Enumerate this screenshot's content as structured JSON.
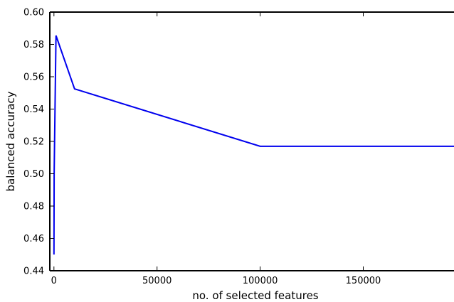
{
  "chart_data": {
    "type": "line",
    "title": "",
    "xlabel": "no. of selected features",
    "ylabel": "balanced accuracy",
    "xlim": [
      -2000,
      194000
    ],
    "ylim": [
      0.44,
      0.6
    ],
    "grid": false,
    "legend": "none",
    "x_ticks": [
      0,
      50000,
      100000,
      150000
    ],
    "x_tick_labels": [
      "0",
      "50000",
      "100000",
      "150000"
    ],
    "y_ticks": [
      0.44,
      0.46,
      0.48,
      0.5,
      0.52,
      0.54,
      0.56,
      0.58,
      0.6
    ],
    "y_tick_labels": [
      "0.44",
      "0.46",
      "0.48",
      "0.50",
      "0.52",
      "0.54",
      "0.56",
      "0.58",
      "0.60"
    ],
    "series": [
      {
        "color": "#0000ee",
        "x": [
          10,
          100,
          1000,
          10000,
          100000,
          194000
        ],
        "y": [
          0.45,
          0.5,
          0.5855,
          0.5525,
          0.517,
          0.517
        ]
      }
    ]
  }
}
